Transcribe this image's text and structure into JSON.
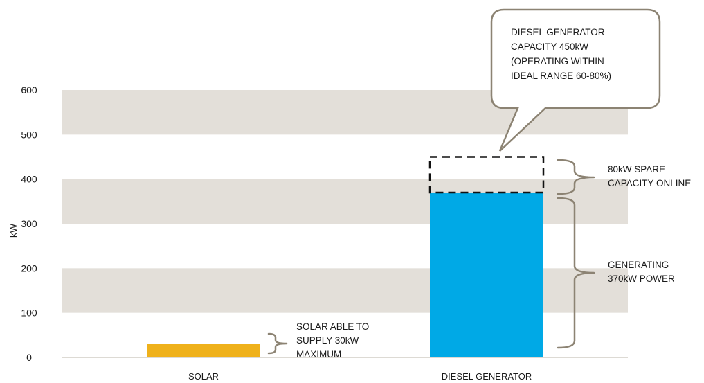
{
  "chart_data": {
    "type": "bar",
    "categories": [
      "SOLAR",
      "DIESEL GENERATOR"
    ],
    "series": [
      {
        "values": [
          30,
          370
        ]
      }
    ],
    "spare_capacity": {
      "category": "DIESEL GENERATOR",
      "from": 370,
      "to": 450
    },
    "ylabel": "kW",
    "ylim": [
      0,
      600
    ],
    "yticks": [
      0,
      100,
      200,
      300,
      400,
      500,
      600
    ],
    "grid": "alternating bands",
    "annotations": {
      "callout": [
        "DIESEL GENERATOR",
        "CAPACITY 450kW",
        "(OPERATING WITHIN",
        "IDEAL RANGE 60-80%)"
      ],
      "spare": [
        "80kW SPARE",
        "CAPACITY ONLINE"
      ],
      "generating": [
        "GENERATING",
        "370kW POWER"
      ],
      "solar": [
        "SOLAR ABLE TO",
        "SUPPLY 30kW",
        "MAXIMUM"
      ]
    },
    "colors": {
      "solar": "#efb11b",
      "diesel": "#00a9e6",
      "band": "#e3dfd9",
      "annotation_line": "#8c8373",
      "dashed_box": "#111111"
    }
  }
}
